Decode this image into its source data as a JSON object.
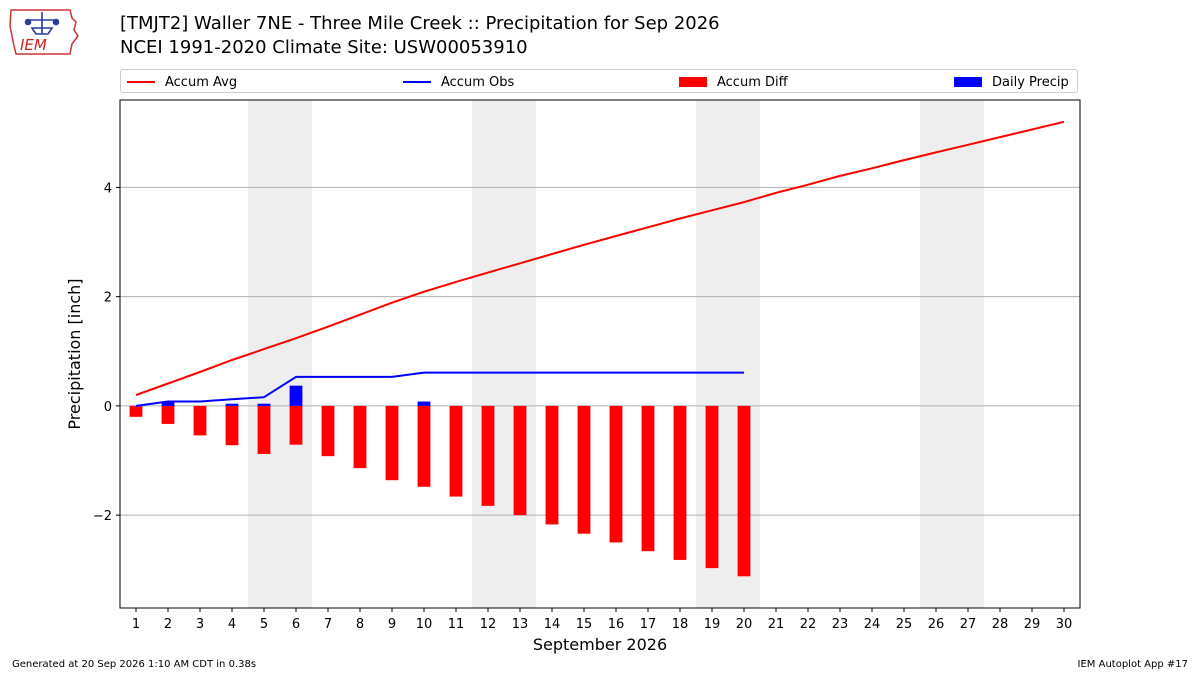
{
  "header": {
    "title_line1": "[TMJT2] Waller 7NE - Three Mile Creek :: Precipitation for Sep 2026",
    "title_line2": "NCEI 1991-2020 Climate Site: USW00053910",
    "logo_text": "IEM"
  },
  "footer": {
    "left": "Generated at 20 Sep 2026 1:10 AM CDT in 0.38s",
    "right": "IEM Autoplot App #17"
  },
  "colors": {
    "accum_avg": "#ff0000",
    "accum_obs": "#0000ff",
    "accum_diff": "#ff0000",
    "daily_precip": "#0000ff",
    "weekend_shade": "#eeeeee",
    "grid": "#b0b0b0"
  },
  "chart_data": {
    "type": "bar",
    "xlabel": "September 2026",
    "ylabel": "Precipitation [inch]",
    "xlim": [
      0.5,
      30.5
    ],
    "ylim": [
      -3.7,
      5.6
    ],
    "yticks": [
      -2,
      0,
      2,
      4
    ],
    "ytick_labels": [
      "−2",
      "0",
      "2",
      "4"
    ],
    "grid": "horizontal",
    "legend_position": "top",
    "days": [
      1,
      2,
      3,
      4,
      5,
      6,
      7,
      8,
      9,
      10,
      11,
      12,
      13,
      14,
      15,
      16,
      17,
      18,
      19,
      20,
      21,
      22,
      23,
      24,
      25,
      26,
      27,
      28,
      29,
      30
    ],
    "weekend_shading": [
      [
        5,
        6
      ],
      [
        12,
        13
      ],
      [
        19,
        20
      ],
      [
        26,
        27
      ]
    ],
    "series": [
      {
        "name": "Accum Avg",
        "kind": "line",
        "x": [
          1,
          2,
          3,
          4,
          5,
          6,
          7,
          8,
          9,
          10,
          11,
          12,
          13,
          14,
          15,
          16,
          17,
          18,
          19,
          20,
          21,
          22,
          23,
          24,
          25,
          26,
          27,
          28,
          29,
          30
        ],
        "values": [
          0.2,
          0.41,
          0.62,
          0.84,
          1.04,
          1.24,
          1.45,
          1.67,
          1.89,
          2.09,
          2.27,
          2.44,
          2.61,
          2.78,
          2.95,
          3.11,
          3.27,
          3.43,
          3.58,
          3.73,
          3.9,
          4.05,
          4.21,
          4.35,
          4.5,
          4.64,
          4.78,
          4.92,
          5.06,
          5.2
        ]
      },
      {
        "name": "Accum Obs",
        "kind": "line",
        "x": [
          1,
          2,
          3,
          4,
          5,
          6,
          7,
          8,
          9,
          10,
          11,
          12,
          13,
          14,
          15,
          16,
          17,
          18,
          19,
          20
        ],
        "values": [
          0.0,
          0.08,
          0.08,
          0.12,
          0.16,
          0.53,
          0.53,
          0.53,
          0.53,
          0.61,
          0.61,
          0.61,
          0.61,
          0.61,
          0.61,
          0.61,
          0.61,
          0.61,
          0.61,
          0.61
        ]
      },
      {
        "name": "Accum Diff",
        "kind": "bar",
        "x": [
          1,
          2,
          3,
          4,
          5,
          6,
          7,
          8,
          9,
          10,
          11,
          12,
          13,
          14,
          15,
          16,
          17,
          18,
          19,
          20
        ],
        "values": [
          -0.2,
          -0.33,
          -0.54,
          -0.72,
          -0.88,
          -0.71,
          -0.92,
          -1.14,
          -1.36,
          -1.48,
          -1.66,
          -1.83,
          -2.0,
          -2.17,
          -2.34,
          -2.5,
          -2.66,
          -2.82,
          -2.97,
          -3.12
        ]
      },
      {
        "name": "Daily Precip",
        "kind": "bar",
        "x": [
          1,
          2,
          3,
          4,
          5,
          6,
          7,
          8,
          9,
          10,
          11,
          12,
          13,
          14,
          15,
          16,
          17,
          18,
          19,
          20
        ],
        "values": [
          0.0,
          0.08,
          0.0,
          0.04,
          0.04,
          0.37,
          0.0,
          0.0,
          0.0,
          0.08,
          0.0,
          0.0,
          0.0,
          0.0,
          0.0,
          0.0,
          0.0,
          0.0,
          0.0,
          0.0
        ]
      }
    ]
  }
}
